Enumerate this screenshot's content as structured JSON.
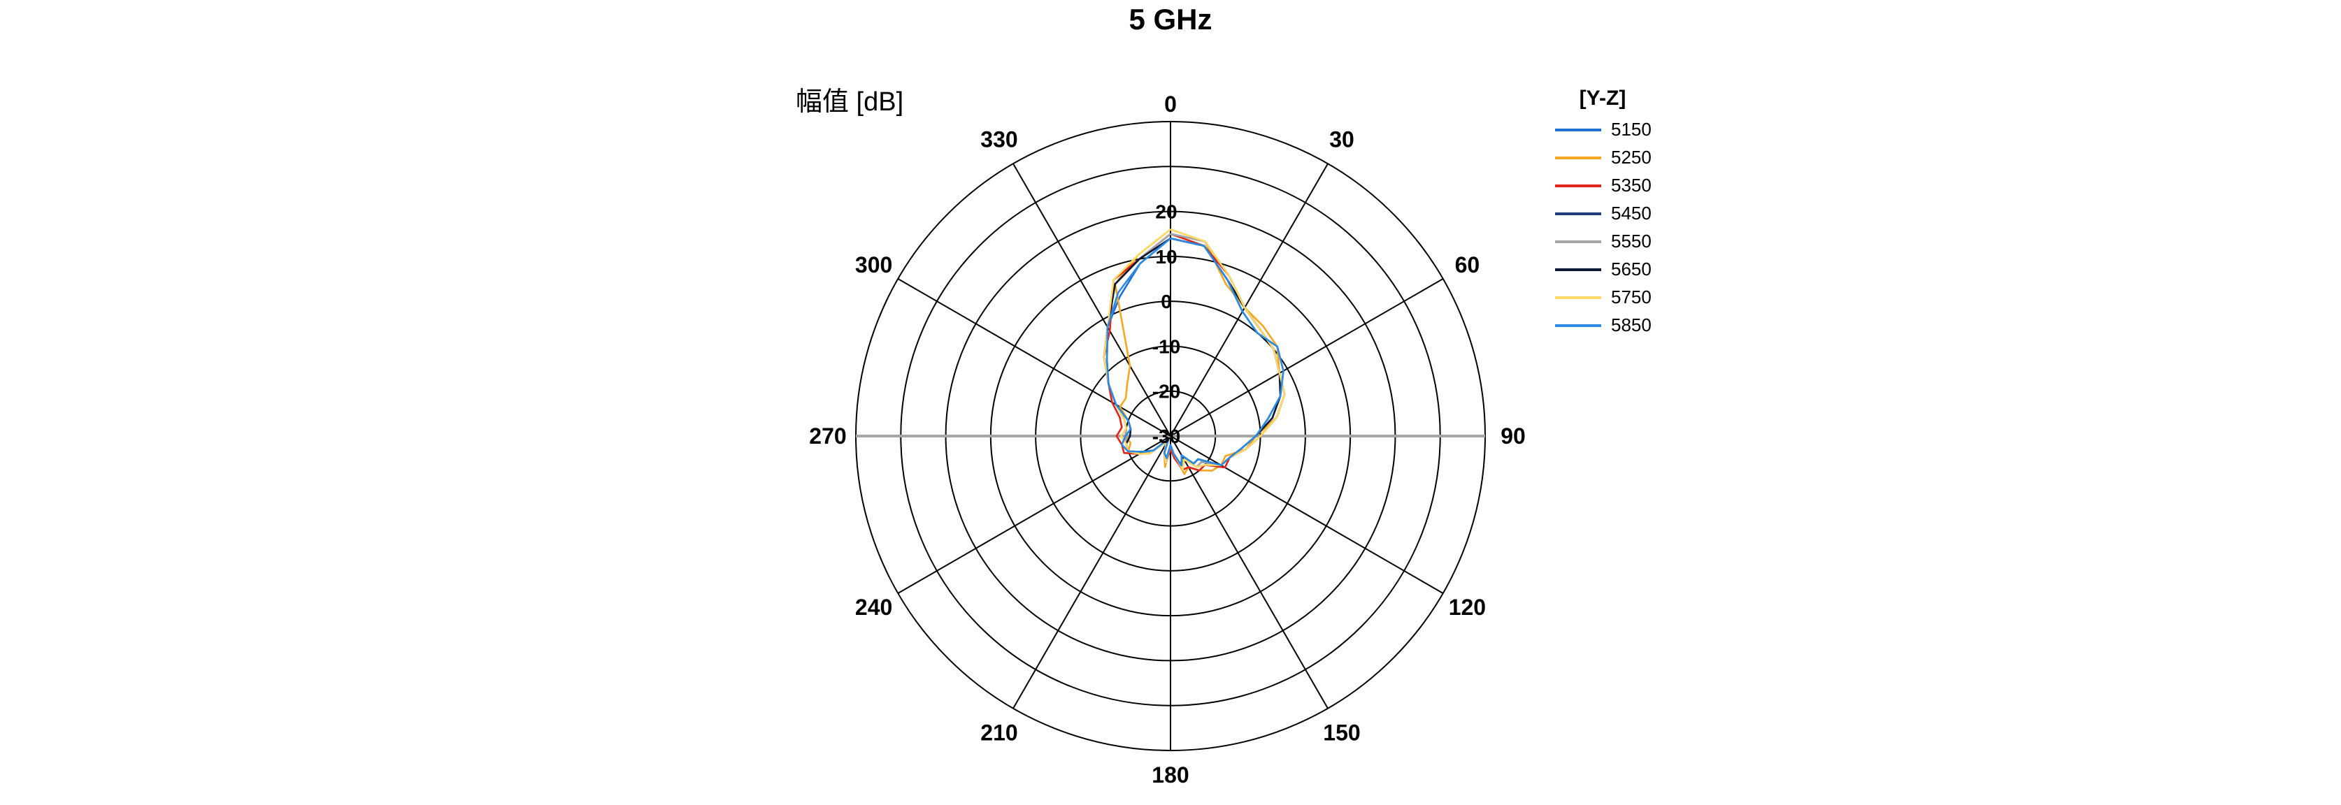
{
  "chart_data": {
    "type": "polar-line",
    "title": "5 GHz",
    "ylabel": "幅值 [dB]",
    "radial_range": [
      -30,
      20
    ],
    "radial_ticks": [
      "20",
      "10",
      "0",
      "-10",
      "-20",
      "-30"
    ],
    "radial_tick_values": [
      20,
      10,
      0,
      -10,
      -20,
      -30
    ],
    "outer_radius_value": 40,
    "angle_ticks": [
      0,
      30,
      60,
      90,
      120,
      150,
      180,
      210,
      240,
      270,
      300,
      330
    ],
    "angle_tick_labels": [
      "0",
      "30",
      "60",
      "90",
      "120",
      "150",
      "180",
      "210",
      "240",
      "270",
      "300",
      "330"
    ],
    "grid": true,
    "legend": {
      "title": "[Y-Z]",
      "position": "right"
    },
    "series": [
      {
        "name": "5150",
        "color": "#1f6fd6",
        "values": [
          14,
          13,
          7,
          2,
          0,
          1,
          -1,
          -4,
          -8,
          -11,
          -14,
          -16,
          -17,
          -22,
          -22,
          -25,
          -23,
          -26,
          -28,
          -24,
          -26,
          -29,
          -29,
          -25,
          -23,
          -20,
          -19,
          -20,
          -21,
          -20,
          -16,
          -12,
          -8,
          -2,
          3,
          9
        ]
      },
      {
        "name": "5250",
        "color": "#f5a623",
        "values": [
          16,
          14,
          6,
          3,
          2,
          1,
          -2,
          -3,
          -6,
          -11,
          -13,
          -17,
          -17,
          -18,
          -20,
          -22,
          -21,
          -26,
          -28,
          -23,
          -26,
          -29,
          -28,
          -24,
          -23,
          -20,
          -21,
          -20,
          -21,
          -20,
          -17,
          -17,
          -15,
          -12,
          6,
          11
        ]
      },
      {
        "name": "5350",
        "color": "#e2231a",
        "values": [
          15,
          13,
          8,
          3,
          1,
          0,
          -2,
          -3,
          -6,
          -10,
          -13,
          -16,
          -16,
          -20,
          -20,
          -22,
          -22,
          -25,
          -27,
          -24,
          -26,
          -28,
          -28,
          -24,
          -22,
          -19,
          -19,
          -18,
          -19,
          -18,
          -15,
          -12,
          -7,
          -3,
          7,
          10
        ]
      },
      {
        "name": "5450",
        "color": "#1f3f7a",
        "values": [
          15,
          14,
          8,
          3,
          1,
          0,
          -2,
          -3,
          -6,
          -10,
          -13,
          -16,
          -17,
          -21,
          -21,
          -24,
          -23,
          -26,
          -28,
          -24,
          -26,
          -28,
          -28,
          -24,
          -23,
          -20,
          -20,
          -20,
          -20,
          -19,
          -16,
          -12,
          -7,
          -2,
          6,
          10
        ]
      },
      {
        "name": "5550",
        "color": "#a6a6a6",
        "values": [
          15,
          14,
          8,
          3,
          1,
          0,
          -2,
          -3,
          -6,
          -10,
          -13,
          -16,
          -17,
          -21,
          -21,
          -24,
          -23,
          -26,
          -28,
          -24,
          -26,
          -28,
          -28,
          -24,
          -23,
          -20,
          -20,
          -20,
          -20,
          -19,
          -16,
          -12,
          -7,
          -2,
          6,
          10
        ]
      },
      {
        "name": "5650",
        "color": "#0b1535",
        "values": [
          14,
          13,
          7,
          3,
          1,
          0,
          -2,
          -4,
          -7,
          -11,
          -14,
          -16,
          -17,
          -22,
          -22,
          -25,
          -23,
          -26,
          -28,
          -25,
          -26,
          -28,
          -28,
          -25,
          -23,
          -20,
          -20,
          -21,
          -21,
          -20,
          -16,
          -12,
          -7,
          -2,
          6,
          10
        ]
      },
      {
        "name": "5750",
        "color": "#ffd966",
        "values": [
          16,
          14,
          8,
          3,
          1,
          0,
          -2,
          -3,
          -6,
          -10,
          -13,
          -16,
          -17,
          -20,
          -21,
          -24,
          -22,
          -26,
          -28,
          -24,
          -26,
          -28,
          -28,
          -24,
          -22,
          -20,
          -20,
          -19,
          -20,
          -19,
          -16,
          -12,
          -7,
          -2,
          7,
          11
        ]
      },
      {
        "name": "5850",
        "color": "#2b8be3",
        "values": [
          14,
          13,
          7,
          2,
          0,
          1,
          -1,
          -4,
          -8,
          -11,
          -14,
          -16,
          -17,
          -22,
          -22,
          -25,
          -23,
          -26,
          -28,
          -25,
          -26,
          -29,
          -29,
          -25,
          -23,
          -20,
          -19,
          -20,
          -21,
          -20,
          -16,
          -12,
          -8,
          -2,
          4,
          9
        ]
      }
    ]
  }
}
